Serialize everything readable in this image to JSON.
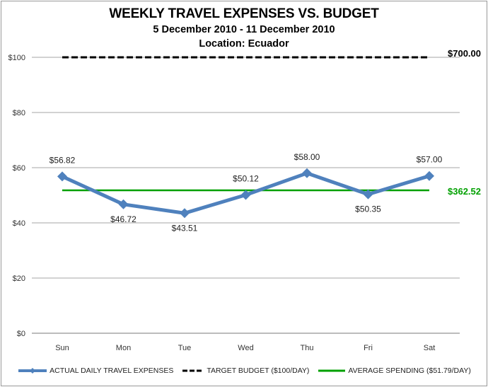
{
  "chart_data": {
    "type": "line",
    "title": "WEEKLY TRAVEL EXPENSES VS. BUDGET",
    "subtitle": "5 December 2010 - 11 December 2010",
    "location": "Location: Ecuador",
    "categories": [
      "Sun",
      "Mon",
      "Tue",
      "Wed",
      "Thu",
      "Fri",
      "Sat"
    ],
    "series": [
      {
        "name": "ACTUAL DAILY TRAVEL EXPENSES",
        "color": "#4f81bd",
        "style": "solid-thick-diamond-markers",
        "values": [
          56.82,
          46.72,
          43.51,
          50.12,
          58.0,
          50.35,
          57.0
        ],
        "labels": [
          "$56.82",
          "$46.72",
          "$43.51",
          "$50.12",
          "$58.00",
          "$50.35",
          "$57.00"
        ]
      },
      {
        "name": "TARGET BUDGET ($100/DAY)",
        "color": "#000000",
        "style": "dashed",
        "values": [
          100,
          100,
          100,
          100,
          100,
          100,
          100
        ],
        "end_label": "$700.00"
      },
      {
        "name": "AVERAGE SPENDING ($51.79/DAY)",
        "color": "#00a000",
        "style": "solid",
        "values": [
          51.79,
          51.79,
          51.79,
          51.79,
          51.79,
          51.79,
          51.79
        ],
        "end_label": "$362.52"
      }
    ],
    "xlabel": "",
    "ylabel": "",
    "ylim": [
      0,
      100
    ],
    "yticks": [
      0,
      20,
      40,
      60,
      80,
      100
    ],
    "ytick_labels": [
      "$0",
      "$20",
      "$40",
      "$60",
      "$80",
      "$100"
    ],
    "grid": true,
    "legend_position": "bottom"
  },
  "colors": {
    "actual": "#4f81bd",
    "target": "#000000",
    "average": "#00a000",
    "average_label": "#00a000",
    "grid": "#a6a6a6",
    "border": "#9a9a9a"
  }
}
